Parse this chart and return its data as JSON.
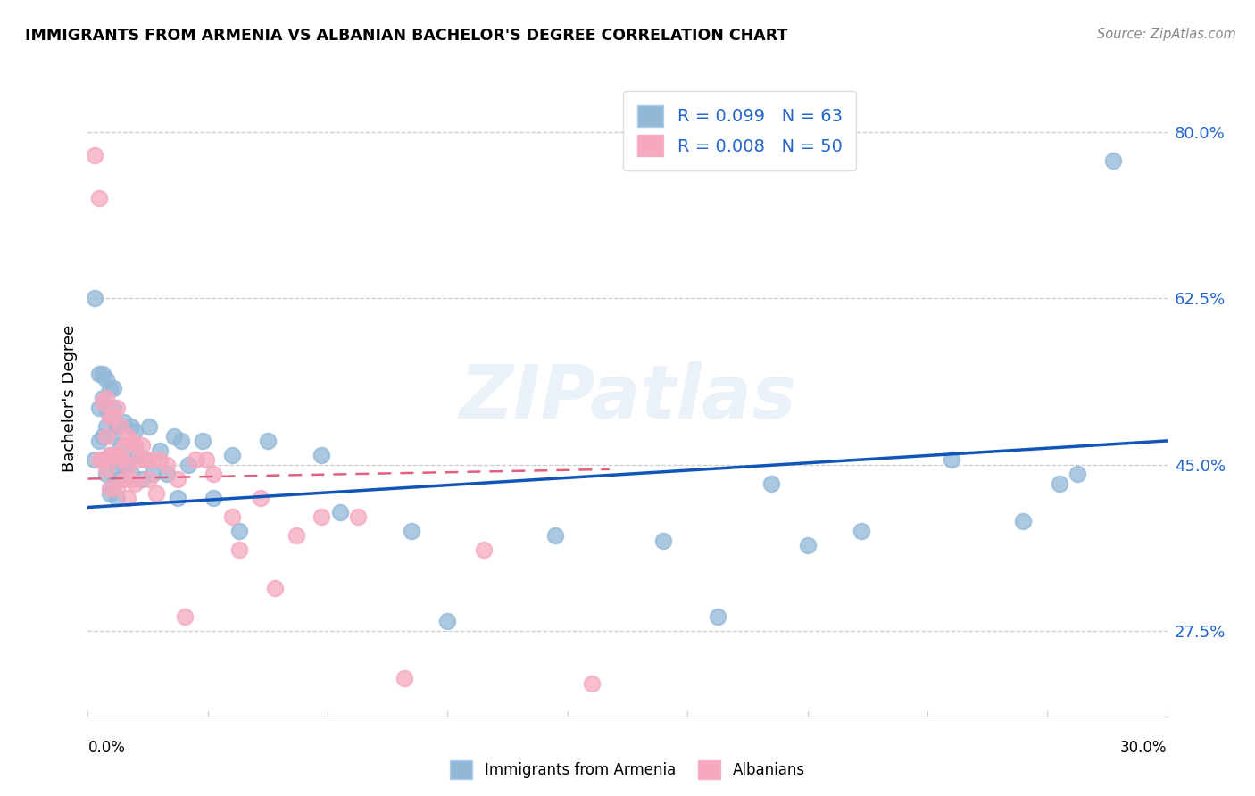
{
  "title": "IMMIGRANTS FROM ARMENIA VS ALBANIAN BACHELOR'S DEGREE CORRELATION CHART",
  "source": "Source: ZipAtlas.com",
  "ylabel": "Bachelor's Degree",
  "ytick_labels": [
    "27.5%",
    "45.0%",
    "62.5%",
    "80.0%"
  ],
  "ytick_values": [
    0.275,
    0.45,
    0.625,
    0.8
  ],
  "xlim": [
    0.0,
    0.3
  ],
  "ylim": [
    0.185,
    0.855
  ],
  "blue_color": "#92b8d8",
  "pink_color": "#f5a8be",
  "blue_line_color": "#1155bb",
  "pink_line_color": "#e06080",
  "watermark": "ZIPatlas",
  "blue_line_x0": 0.0,
  "blue_line_y0": 0.405,
  "blue_line_x1": 0.3,
  "blue_line_y1": 0.475,
  "pink_line_x0": 0.0,
  "pink_line_y0": 0.435,
  "pink_line_x1": 0.145,
  "pink_line_y1": 0.445,
  "blue_scatter_x": [
    0.002,
    0.002,
    0.003,
    0.003,
    0.003,
    0.004,
    0.004,
    0.004,
    0.005,
    0.005,
    0.005,
    0.005,
    0.006,
    0.006,
    0.006,
    0.006,
    0.007,
    0.007,
    0.007,
    0.007,
    0.007,
    0.008,
    0.008,
    0.008,
    0.009,
    0.009,
    0.01,
    0.01,
    0.011,
    0.012,
    0.012,
    0.013,
    0.014,
    0.015,
    0.016,
    0.017,
    0.018,
    0.02,
    0.022,
    0.024,
    0.025,
    0.026,
    0.028,
    0.032,
    0.035,
    0.04,
    0.042,
    0.05,
    0.065,
    0.07,
    0.09,
    0.1,
    0.13,
    0.16,
    0.175,
    0.19,
    0.2,
    0.215,
    0.24,
    0.26,
    0.27,
    0.275,
    0.285
  ],
  "blue_scatter_y": [
    0.625,
    0.455,
    0.545,
    0.51,
    0.475,
    0.545,
    0.52,
    0.48,
    0.54,
    0.51,
    0.49,
    0.44,
    0.53,
    0.5,
    0.46,
    0.42,
    0.53,
    0.51,
    0.48,
    0.455,
    0.43,
    0.49,
    0.45,
    0.415,
    0.47,
    0.435,
    0.495,
    0.45,
    0.455,
    0.49,
    0.44,
    0.485,
    0.46,
    0.435,
    0.455,
    0.49,
    0.44,
    0.465,
    0.44,
    0.48,
    0.415,
    0.475,
    0.45,
    0.475,
    0.415,
    0.46,
    0.38,
    0.475,
    0.46,
    0.4,
    0.38,
    0.285,
    0.375,
    0.37,
    0.29,
    0.43,
    0.365,
    0.38,
    0.455,
    0.39,
    0.43,
    0.44,
    0.77
  ],
  "pink_scatter_x": [
    0.002,
    0.003,
    0.003,
    0.004,
    0.004,
    0.005,
    0.005,
    0.005,
    0.006,
    0.006,
    0.006,
    0.007,
    0.007,
    0.008,
    0.008,
    0.008,
    0.009,
    0.009,
    0.01,
    0.01,
    0.011,
    0.011,
    0.011,
    0.012,
    0.012,
    0.013,
    0.013,
    0.014,
    0.015,
    0.016,
    0.017,
    0.018,
    0.019,
    0.02,
    0.022,
    0.025,
    0.027,
    0.03,
    0.033,
    0.035,
    0.04,
    0.042,
    0.048,
    0.052,
    0.058,
    0.065,
    0.075,
    0.088,
    0.11,
    0.14
  ],
  "pink_scatter_y": [
    0.775,
    0.73,
    0.455,
    0.515,
    0.455,
    0.52,
    0.48,
    0.445,
    0.5,
    0.46,
    0.425,
    0.5,
    0.46,
    0.51,
    0.46,
    0.425,
    0.49,
    0.455,
    0.47,
    0.435,
    0.48,
    0.45,
    0.415,
    0.475,
    0.435,
    0.47,
    0.43,
    0.455,
    0.47,
    0.455,
    0.435,
    0.455,
    0.42,
    0.455,
    0.45,
    0.435,
    0.29,
    0.455,
    0.455,
    0.44,
    0.395,
    0.36,
    0.415,
    0.32,
    0.375,
    0.395,
    0.395,
    0.225,
    0.36,
    0.22
  ]
}
